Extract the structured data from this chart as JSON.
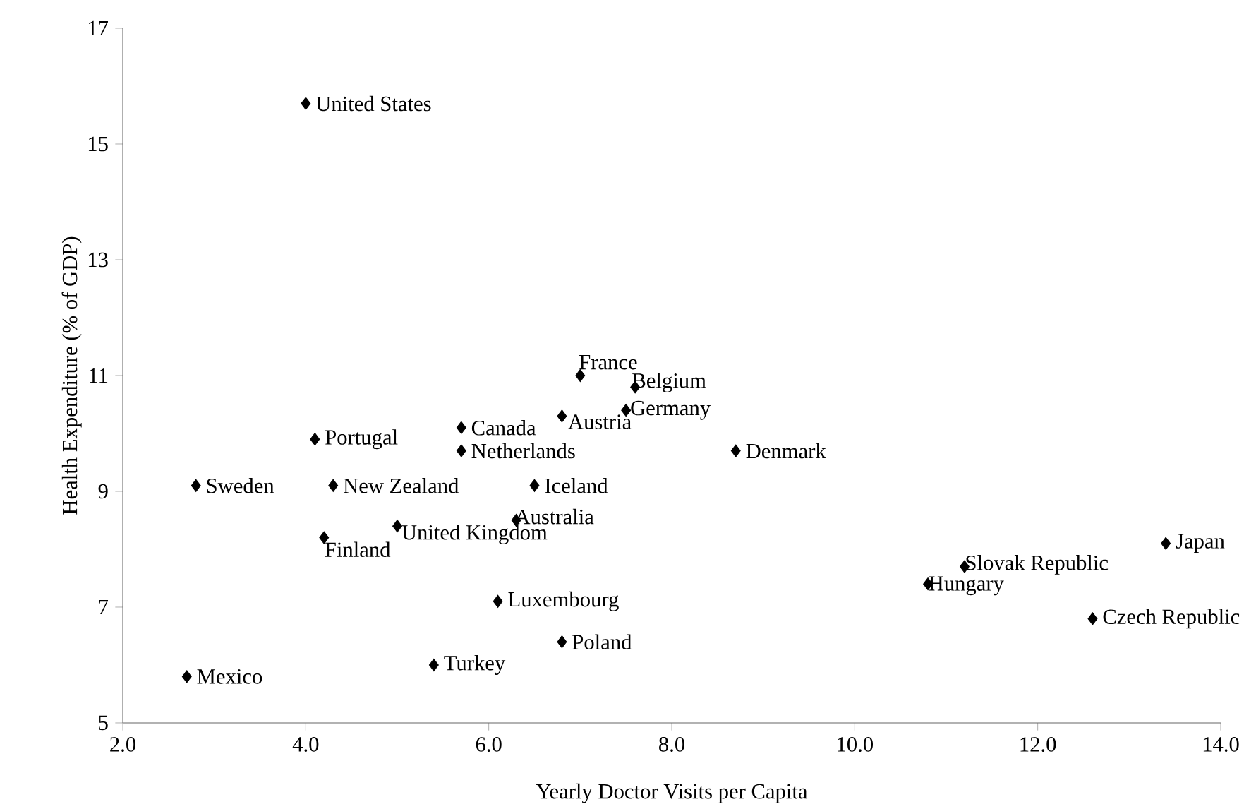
{
  "chart_data": {
    "type": "scatter",
    "xlabel": "Yearly Doctor Visits per Capita",
    "ylabel": "Health Expenditure (% of GDP)",
    "x": [
      4.0,
      7.0,
      7.6,
      7.5,
      6.8,
      5.7,
      4.1,
      5.7,
      8.7,
      2.8,
      4.3,
      6.5,
      6.3,
      5.0,
      4.2,
      13.4,
      11.2,
      10.8,
      6.1,
      12.6,
      6.8,
      5.4,
      2.7
    ],
    "values": [
      15.7,
      11.0,
      10.8,
      10.4,
      10.3,
      10.1,
      9.9,
      9.7,
      9.7,
      9.1,
      9.1,
      9.1,
      8.5,
      8.4,
      8.2,
      8.1,
      7.7,
      7.4,
      7.1,
      6.8,
      6.4,
      6.0,
      5.8
    ],
    "color": "#000000",
    "marker": "diamond",
    "grid": false,
    "xlim": [
      2,
      14
    ],
    "ylim": [
      5,
      17
    ],
    "xticks": [
      {
        "value": 2,
        "label": "2.0"
      },
      {
        "value": 4,
        "label": "4.0"
      },
      {
        "value": 6,
        "label": "6.0"
      },
      {
        "value": 8,
        "label": "8.0"
      },
      {
        "value": 10,
        "label": "10.0"
      },
      {
        "value": 12,
        "label": "12.0"
      },
      {
        "value": 14,
        "label": "14.0"
      }
    ],
    "yticks": [
      5,
      7,
      9,
      11,
      13,
      15,
      17
    ],
    "annotations": [
      {
        "text": "United States",
        "x": 4.0,
        "y": 15.7
      },
      {
        "text": "France",
        "x": 7.0,
        "y": 11.0
      },
      {
        "text": "Belgium",
        "x": 7.6,
        "y": 10.8
      },
      {
        "text": "Germany",
        "x": 7.5,
        "y": 10.4
      },
      {
        "text": "Austria",
        "x": 6.8,
        "y": 10.3
      },
      {
        "text": "Canada",
        "x": 5.7,
        "y": 10.1
      },
      {
        "text": "Portugal",
        "x": 4.1,
        "y": 9.9
      },
      {
        "text": "Netherlands",
        "x": 5.7,
        "y": 9.7
      },
      {
        "text": "Denmark",
        "x": 8.7,
        "y": 9.7
      },
      {
        "text": "Sweden",
        "x": 2.8,
        "y": 9.1
      },
      {
        "text": "New Zealand",
        "x": 4.3,
        "y": 9.1
      },
      {
        "text": "Iceland",
        "x": 6.5,
        "y": 9.1
      },
      {
        "text": "Australia",
        "x": 6.3,
        "y": 8.5
      },
      {
        "text": "United Kingdom",
        "x": 5.0,
        "y": 8.4
      },
      {
        "text": "Finland",
        "x": 4.2,
        "y": 8.2
      },
      {
        "text": "Japan",
        "x": 13.4,
        "y": 8.1
      },
      {
        "text": "Slovak Republic",
        "x": 11.2,
        "y": 7.7
      },
      {
        "text": "Hungary",
        "x": 10.8,
        "y": 7.4
      },
      {
        "text": "Luxembourg",
        "x": 6.1,
        "y": 7.1
      },
      {
        "text": "Czech Republic",
        "x": 12.6,
        "y": 6.8
      },
      {
        "text": "Poland",
        "x": 6.8,
        "y": 6.4
      },
      {
        "text": "Turkey",
        "x": 5.4,
        "y": 6.0
      },
      {
        "text": "Mexico",
        "x": 2.7,
        "y": 5.8
      }
    ]
  }
}
